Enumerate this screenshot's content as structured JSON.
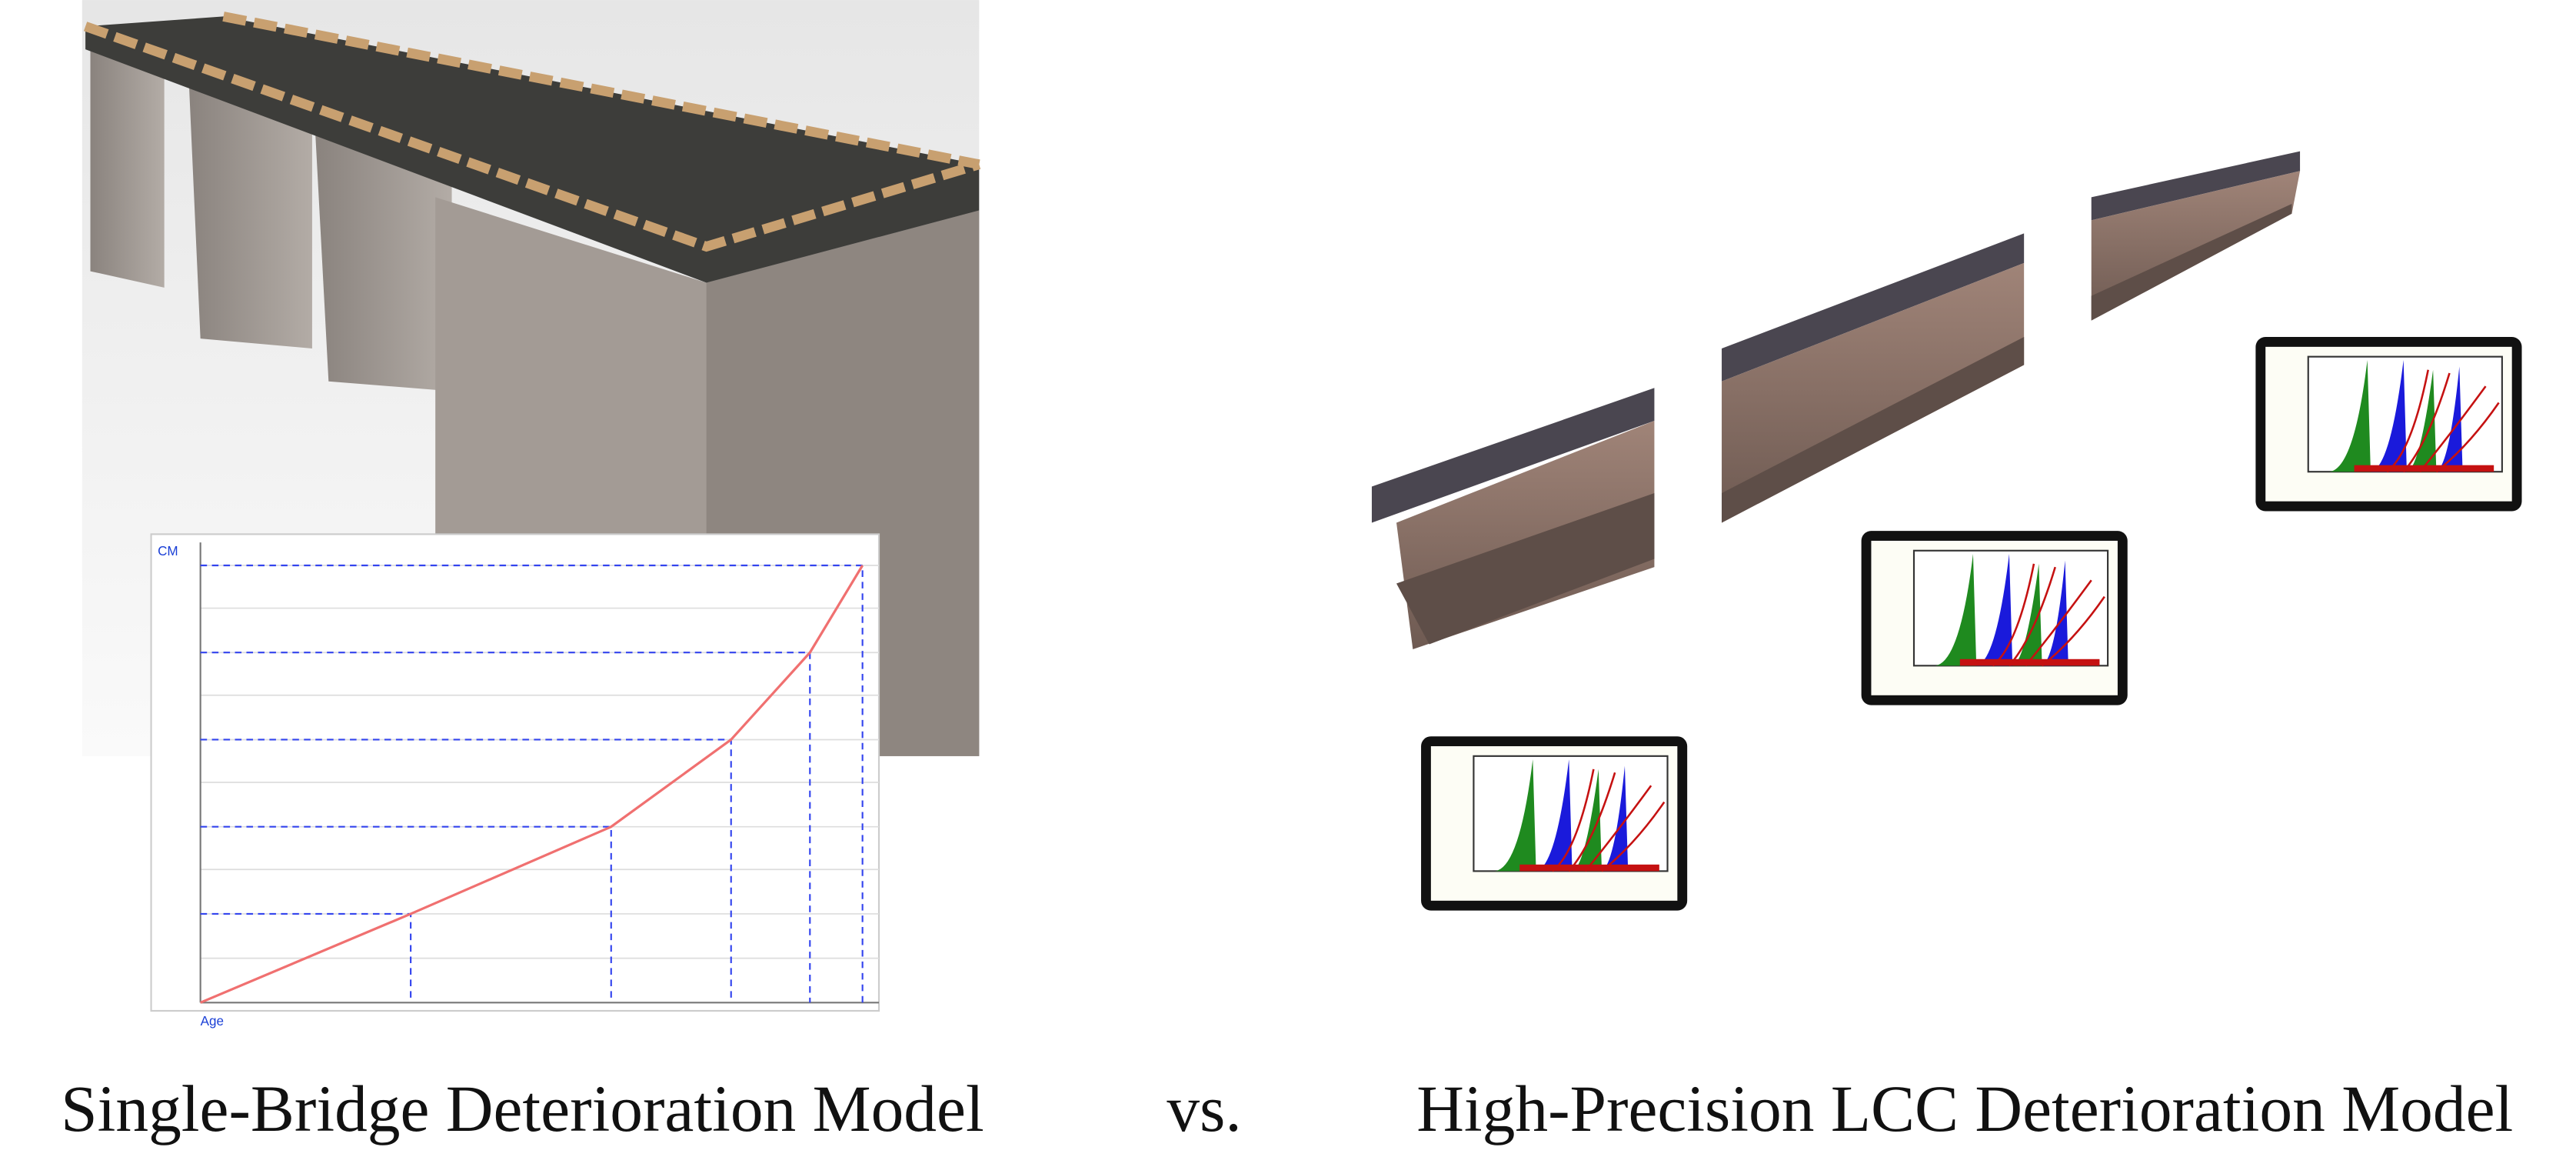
{
  "left_chart": {
    "y_label": "CM",
    "x_label": "Age"
  },
  "captions": {
    "left": "Single-Bridge Deterioration Model",
    "separator": "vs.",
    "right": "High-Precision LCC Deterioration Model"
  }
}
